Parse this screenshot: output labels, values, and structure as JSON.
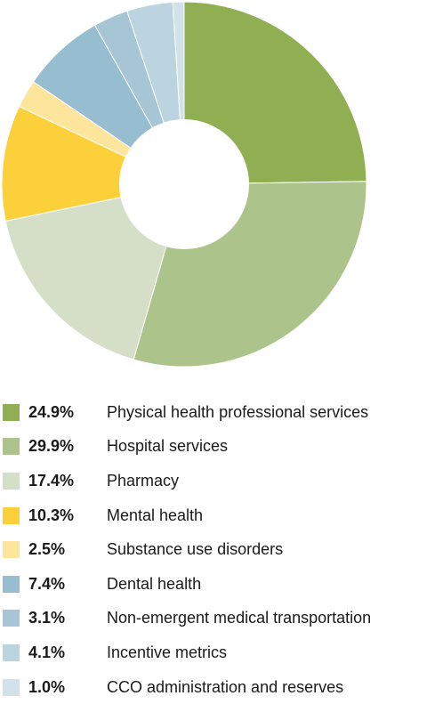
{
  "chart_data": {
    "type": "pie",
    "variant": "donut",
    "slices": [
      {
        "value": 24.9,
        "value_label": "24.9%",
        "label": "Physical health professional services",
        "color": "#8faf52"
      },
      {
        "value": 29.9,
        "value_label": "29.9%",
        "label": "Hospital services",
        "color": "#acc38c"
      },
      {
        "value": 17.4,
        "value_label": "17.4%",
        "label": "Pharmacy",
        "color": "#d5dfc7"
      },
      {
        "value": 10.3,
        "value_label": "10.3%",
        "label": "Mental health",
        "color": "#fcd03a"
      },
      {
        "value": 2.5,
        "value_label": "2.5%",
        "label": "Substance use disorders",
        "color": "#fde59c"
      },
      {
        "value": 7.4,
        "value_label": "7.4%",
        "label": "Dental health",
        "color": "#96bdd0"
      },
      {
        "value": 3.1,
        "value_label": "3.1%",
        "label": "Non-emergent medical transportation",
        "color": "#a6c6d6"
      },
      {
        "value": 4.1,
        "value_label": "4.1%",
        "label": "Incentive metrics",
        "color": "#bcd4e0"
      },
      {
        "value": 1.0,
        "value_label": "1.0%",
        "label": "CCO administration and reserves",
        "color": "#d2e2ea"
      }
    ],
    "legend_position": "bottom"
  }
}
